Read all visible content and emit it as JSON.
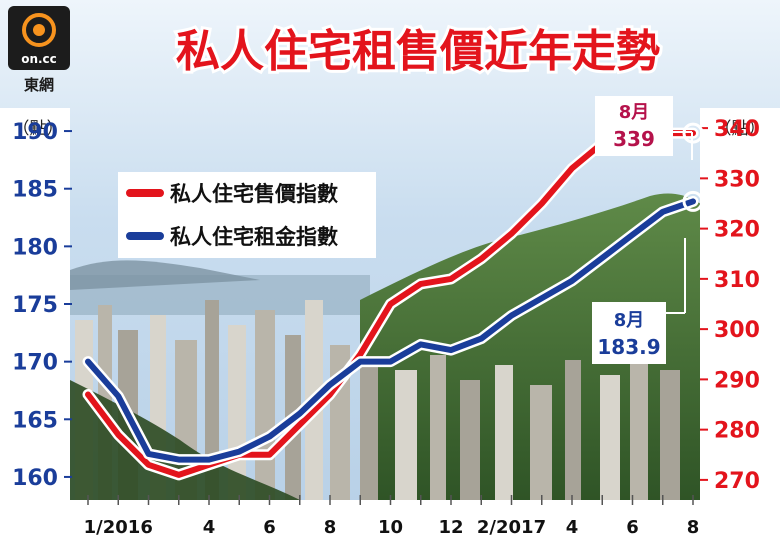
{
  "brand": {
    "logo_text": "on.cc",
    "name": "東網"
  },
  "chart_data": {
    "type": "line",
    "title": "私人住宅租售價近年走勢",
    "x": [
      "2015-12",
      "1/2016",
      "2016-02",
      "2016-03",
      "4",
      "2016-05",
      "6",
      "2016-07",
      "8",
      "2016-09",
      "10",
      "2016-11",
      "12",
      "2017-01",
      "2/2017",
      "2017-03",
      "4",
      "2017-05",
      "6",
      "2017-07",
      "8"
    ],
    "x_tick_labels": [
      "1/2016",
      "4",
      "6",
      "8",
      "10",
      "12",
      "2/2017",
      "4",
      "6",
      "8"
    ],
    "left_axis": {
      "unit_label": "（點）",
      "ylim": [
        158,
        192
      ],
      "ticks": [
        160,
        165,
        170,
        175,
        180,
        185,
        190
      ]
    },
    "right_axis": {
      "unit_label": "（點）",
      "ylim": [
        266,
        344
      ],
      "ticks": [
        270,
        280,
        290,
        300,
        310,
        320,
        330,
        340
      ]
    },
    "series": [
      {
        "name": "私人住宅售價指數",
        "axis": "right",
        "color": "#e3141c",
        "values": [
          287,
          279,
          273,
          271,
          273,
          275,
          275,
          281,
          287,
          295,
          305,
          309,
          310,
          314,
          319,
          325,
          332,
          337,
          339,
          339,
          339
        ]
      },
      {
        "name": "私人住宅租金指數",
        "axis": "left",
        "color": "#1a3d9a",
        "values": [
          170,
          167,
          162,
          161.5,
          161.5,
          162.2,
          163.5,
          165.5,
          168,
          170,
          170,
          171.5,
          171,
          172,
          174,
          175.5,
          177,
          179,
          181,
          183,
          183.9
        ]
      }
    ],
    "annotations": [
      {
        "series": "私人住宅售價指數",
        "month": "8月",
        "value": "339"
      },
      {
        "series": "私人住宅租金指數",
        "month": "8月",
        "value": "183.9"
      }
    ],
    "legend_position": "upper-left",
    "grid": false
  },
  "colors": {
    "sale": "#e3141c",
    "rent": "#1a3d9a",
    "sky": "#cfe3f3",
    "hill": "#4d7a3a"
  }
}
